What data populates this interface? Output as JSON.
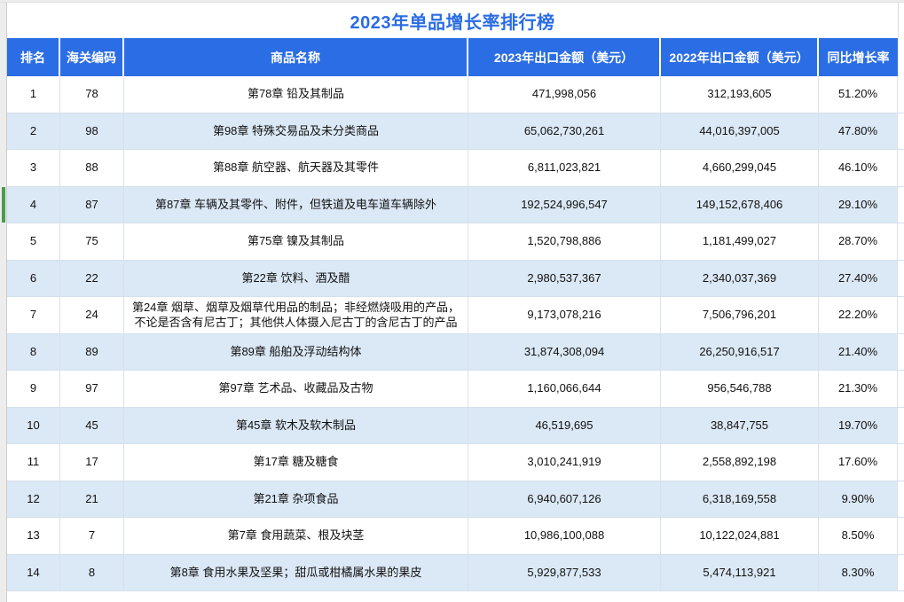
{
  "chart_data": {
    "type": "table",
    "title": "2023年单品增长率排行榜",
    "columns": [
      "排名",
      "海关编码",
      "商品名称",
      "2023年出口金额（美元）",
      "2022年出口金额（美元）",
      "同比增长率"
    ],
    "rows": [
      [
        "1",
        "78",
        "第78章 铅及其制品",
        "471,998,056",
        "312,193,605",
        "51.20%"
      ],
      [
        "2",
        "98",
        "第98章 特殊交易品及未分类商品",
        "65,062,730,261",
        "44,016,397,005",
        "47.80%"
      ],
      [
        "3",
        "88",
        "第88章 航空器、航天器及其零件",
        "6,811,023,821",
        "4,660,299,045",
        "46.10%"
      ],
      [
        "4",
        "87",
        "第87章 车辆及其零件、附件，但铁道及电车道车辆除外",
        "192,524,996,547",
        "149,152,678,406",
        "29.10%"
      ],
      [
        "5",
        "75",
        "第75章 镍及其制品",
        "1,520,798,886",
        "1,181,499,027",
        "28.70%"
      ],
      [
        "6",
        "22",
        "第22章 饮料、酒及醋",
        "2,980,537,367",
        "2,340,037,369",
        "27.40%"
      ],
      [
        "7",
        "24",
        "第24章 烟草、烟草及烟草代用品的制品；非经燃烧吸用的产品，不论是否含有尼古丁；其他供人体摄入尼古丁的含尼古丁的产品",
        "9,173,078,216",
        "7,506,796,201",
        "22.20%"
      ],
      [
        "8",
        "89",
        "第89章 船舶及浮动结构体",
        "31,874,308,094",
        "26,250,916,517",
        "21.40%"
      ],
      [
        "9",
        "97",
        "第97章 艺术品、收藏品及古物",
        "1,160,066,644",
        "956,546,788",
        "21.30%"
      ],
      [
        "10",
        "45",
        "第45章 软木及软木制品",
        "46,519,695",
        "38,847,755",
        "19.70%"
      ],
      [
        "11",
        "17",
        "第17章 糖及糖食",
        "3,010,241,919",
        "2,558,892,198",
        "17.60%"
      ],
      [
        "12",
        "21",
        "第21章 杂项食品",
        "6,940,607,126",
        "6,318,169,558",
        "9.90%"
      ],
      [
        "13",
        "7",
        "第7章 食用蔬菜、根及块茎",
        "10,986,100,088",
        "10,122,024,881",
        "8.50%"
      ],
      [
        "14",
        "8",
        "第8章 食用水果及坚果；甜瓜或柑橘属水果的果皮",
        "5,929,877,533",
        "5,474,113,921",
        "8.30%"
      ]
    ],
    "legend": "none",
    "grid": "on"
  },
  "selection": {
    "rank": "4"
  },
  "colors": {
    "header_bg": "#2b6de4",
    "title_color": "#2a6ce4",
    "stripe": "#dbe8f5",
    "grid_v": "#d9e1ea",
    "grid_h": "#d5e0ec",
    "highlight": "#4b9b4b",
    "gutter_bg": "#ededed",
    "gutter_line": "#cccccc"
  }
}
